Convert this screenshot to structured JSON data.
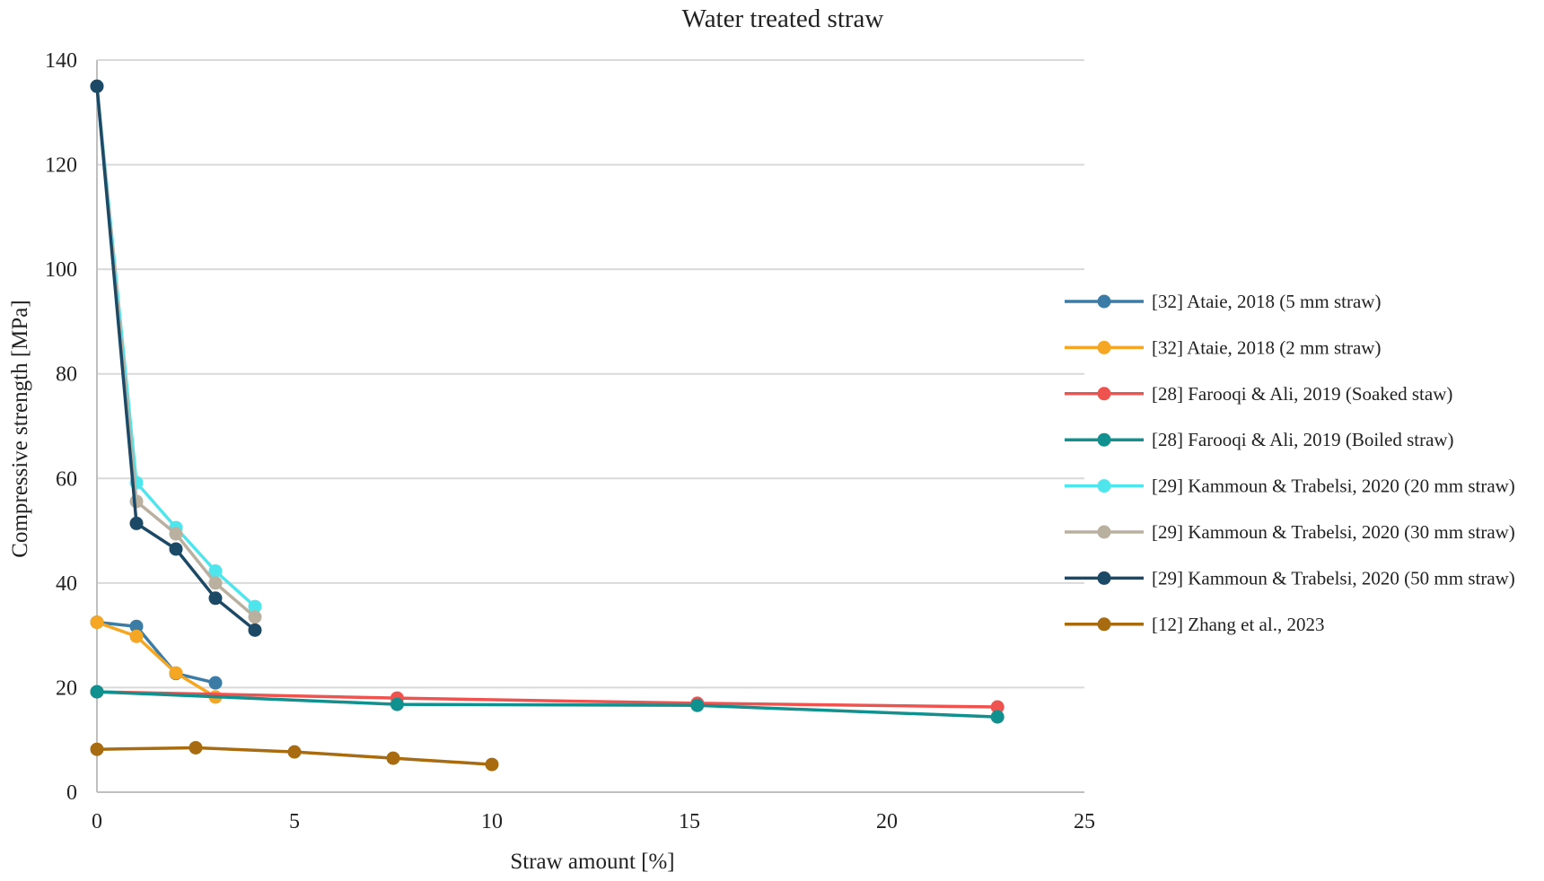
{
  "chart_data": {
    "type": "line",
    "title": "Water treated straw",
    "xlabel": "Straw amount [%]",
    "ylabel": "Compressive strength [MPa]",
    "xlim": [
      0,
      25
    ],
    "ylim": [
      0,
      140
    ],
    "xticks": [
      0,
      5,
      10,
      15,
      20,
      25
    ],
    "yticks": [
      0,
      20,
      40,
      60,
      80,
      100,
      120,
      140
    ],
    "grid": "horizontal",
    "legend_position": "right",
    "series": [
      {
        "name": "[32] Ataie, 2018 (5 mm straw)",
        "color": "#3a7ca5",
        "x": [
          0,
          1,
          2,
          3
        ],
        "y": [
          32.5,
          31.7,
          22.7,
          20.9
        ]
      },
      {
        "name": "[32] Ataie, 2018 (2 mm straw)",
        "color": "#f5a623",
        "x": [
          0,
          1,
          2,
          3
        ],
        "y": [
          32.5,
          29.8,
          22.8,
          18.2
        ]
      },
      {
        "name": "[28] Farooqi & Ali, 2019 (Soaked staw)",
        "color": "#ef5350",
        "x": [
          0,
          7.6,
          15.2,
          22.8
        ],
        "y": [
          19.2,
          18.0,
          17.0,
          16.3
        ]
      },
      {
        "name": "[28] Farooqi & Ali, 2019 (Boiled straw)",
        "color": "#10908e",
        "x": [
          0,
          7.6,
          15.2,
          22.8
        ],
        "y": [
          19.2,
          16.8,
          16.6,
          14.4
        ]
      },
      {
        "name": "[29] Kammoun & Trabelsi, 2020 (20 mm straw)",
        "color": "#4ee6ec",
        "x": [
          0,
          1,
          2,
          3,
          4
        ],
        "y": [
          135,
          59.2,
          50.6,
          42.3,
          35.5
        ]
      },
      {
        "name": "[29] Kammoun & Trabelsi, 2020 (30 mm straw)",
        "color": "#b9b09f",
        "x": [
          0,
          1,
          2,
          3,
          4
        ],
        "y": [
          135,
          55.6,
          49.4,
          40.0,
          33.5
        ]
      },
      {
        "name": "[29] Kammoun & Trabelsi, 2020 (50 mm straw)",
        "color": "#1c4966",
        "x": [
          0,
          1,
          2,
          3,
          4
        ],
        "y": [
          135,
          51.4,
          46.5,
          37.1,
          31.0
        ]
      },
      {
        "name": "[12] Zhang et al., 2023",
        "color": "#a86b0f",
        "x": [
          0,
          2.5,
          5,
          7.5,
          10
        ],
        "y": [
          8.2,
          8.5,
          7.7,
          6.5,
          5.3
        ]
      }
    ]
  }
}
